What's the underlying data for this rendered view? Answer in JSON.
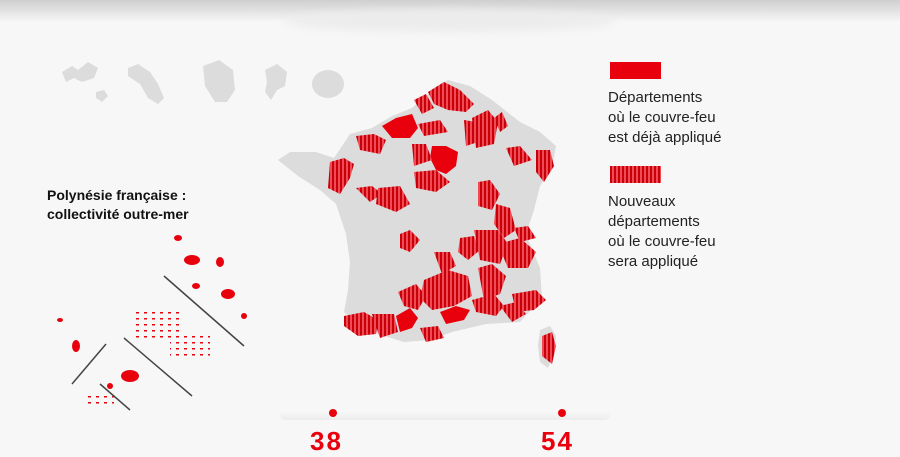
{
  "colors": {
    "curfew_existing": "#e8000d",
    "curfew_new_hatch": "#c7000a",
    "territory_grey": "#dcdcdc",
    "background": "#f7f7f7"
  },
  "polynesia": {
    "title_line1": "Polynésie française :",
    "title_line2": "collectivité outre-mer"
  },
  "legend": {
    "existing": {
      "line1": "Départements",
      "line2": "où le couvre-feu",
      "line3": "est déjà appliqué"
    },
    "new": {
      "line1": "Nouveaux",
      "line2": "départements",
      "line3": "où le couvre-feu",
      "line4": "sera appliqué"
    }
  },
  "timeline": {
    "value_before": "38",
    "value_after": "54"
  },
  "icons": [
    "overseas-territory-shapes",
    "france-department-map",
    "polynesia-islands"
  ]
}
